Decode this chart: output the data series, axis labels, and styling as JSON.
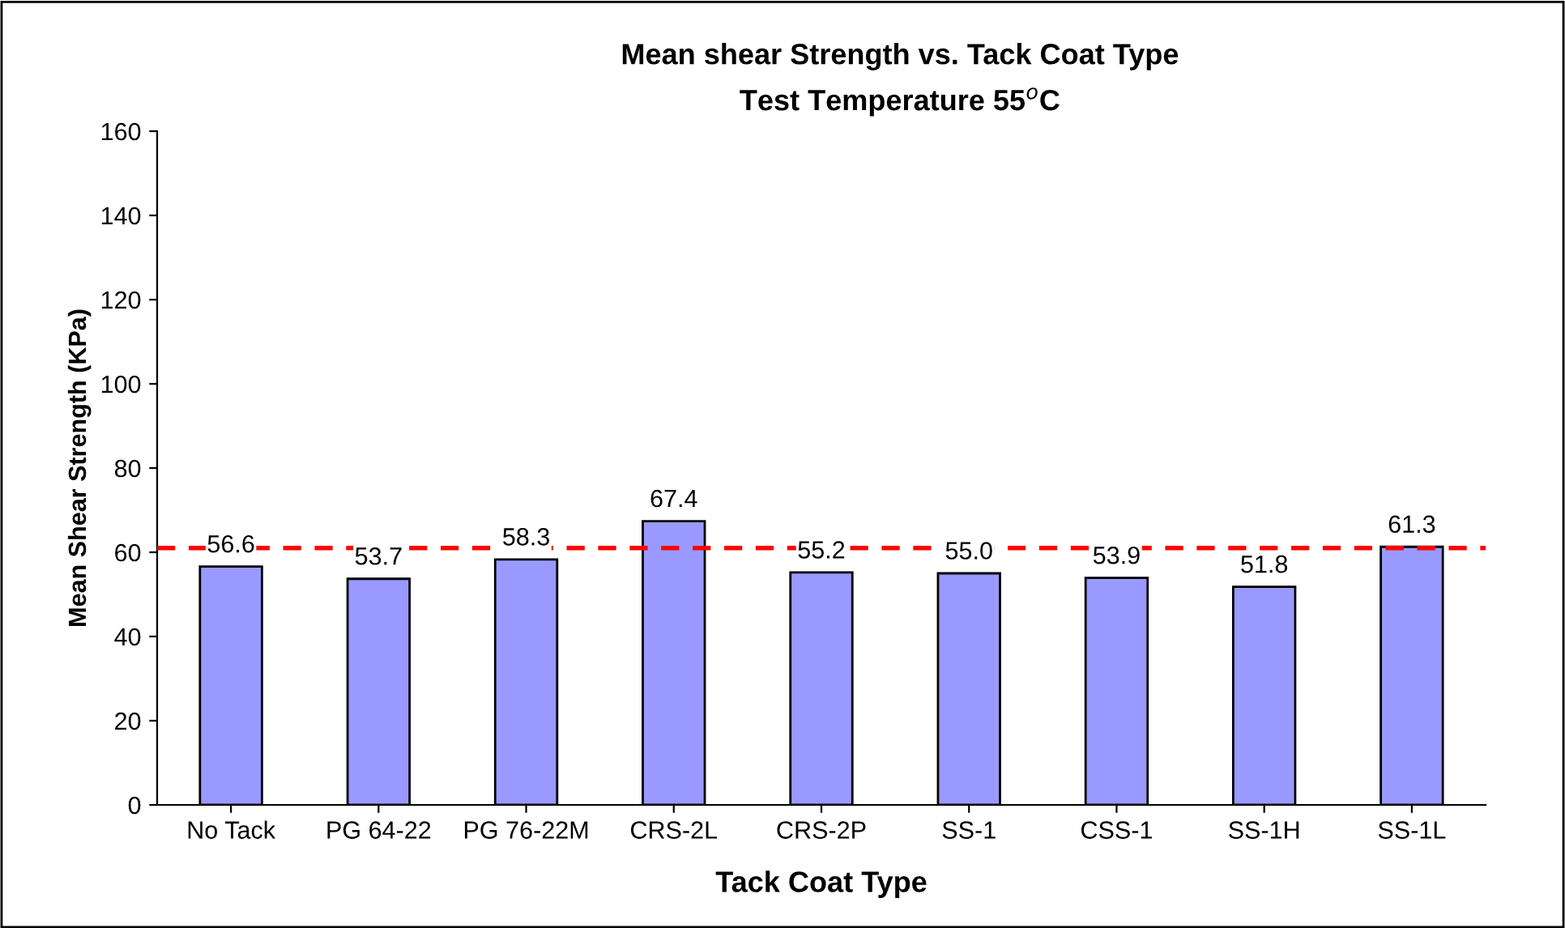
{
  "chart_data": {
    "type": "bar",
    "title": "Mean shear Strength vs. Tack Coat Type",
    "subtitle": "Test Temperature 55$^{o}$C",
    "xlabel": "Tack Coat Type",
    "ylabel": "Mean Shear Strength (KPa)",
    "categories": [
      "No Tack",
      "PG 64-22",
      "PG 76-22M",
      "CRS-2L",
      "CRS-2P",
      "SS-1",
      "CSS-1",
      "SS-1H",
      "SS-1L"
    ],
    "series": [
      {
        "color": "#9999ff",
        "values": [
          56.6,
          53.7,
          58.3,
          67.4,
          55.2,
          55.0,
          53.9,
          51.8,
          61.3
        ]
      }
    ],
    "ylim": [
      0,
      160
    ],
    "yticks": [
      0,
      20,
      40,
      60,
      80,
      100,
      120,
      140,
      160
    ],
    "grid": false,
    "legend": false,
    "value_labels": [
      "56.6",
      "53.7",
      "58.3",
      "67.4",
      "55.2",
      "55.0",
      "53.9",
      "51.8",
      "61.3"
    ],
    "ref_lines": [
      {
        "axis": "y",
        "value": 61,
        "color": "#ff0000",
        "line_style": "dashed"
      }
    ]
  }
}
